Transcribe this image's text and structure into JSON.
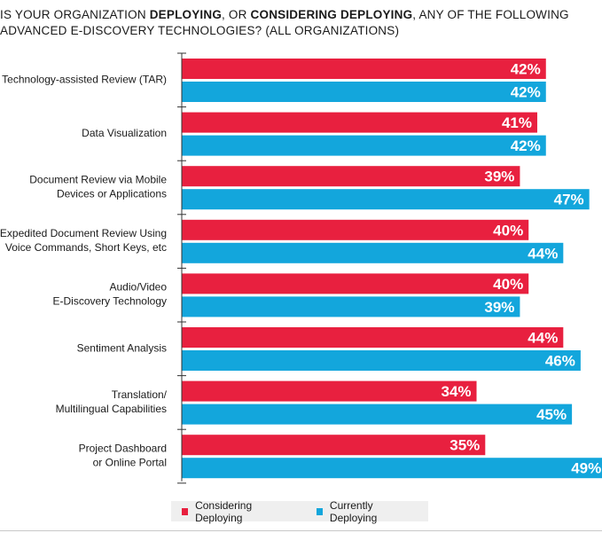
{
  "chart_data": {
    "type": "bar",
    "orientation": "horizontal",
    "title_parts": [
      {
        "text": "IS YOUR ORGANIZATION ",
        "bold": false
      },
      {
        "text": "DEPLOYING",
        "bold": true
      },
      {
        "text": ", OR ",
        "bold": false
      },
      {
        "text": "CONSIDERING DEPLOYING",
        "bold": true
      },
      {
        "text": ", ANY OF THE FOLLOWING ADVANCED E-DISCOVERY TECHNOLOGIES? (ALL ORGANIZATIONS)",
        "bold": false
      }
    ],
    "categories": [
      [
        "Technology-assisted Review (TAR)"
      ],
      [
        "Data Visualization"
      ],
      [
        "Document Review via Mobile",
        "Devices or Applications"
      ],
      [
        "Expedited Document Review Using",
        "Voice Commands, Short Keys, etc"
      ],
      [
        "Audio/Video",
        "E-Discovery Technology"
      ],
      [
        "Sentiment Analysis"
      ],
      [
        "Translation/",
        "Multilingual Capabilities"
      ],
      [
        "Project Dashboard",
        "or Online Portal"
      ]
    ],
    "series": [
      {
        "name": "Considering Deploying",
        "color": "#e8203f",
        "values": [
          42,
          41,
          39,
          40,
          40,
          44,
          34,
          35
        ]
      },
      {
        "name": "Currently Deploying",
        "color": "#13a6dc",
        "values": [
          42,
          42,
          47,
          44,
          39,
          46,
          45,
          49
        ]
      }
    ],
    "value_suffix": "%",
    "xlim": [
      0,
      50
    ],
    "grid": false,
    "legend_position": "bottom"
  },
  "legend": {
    "items": [
      {
        "label": "Considering Deploying",
        "color": "#e8203f"
      },
      {
        "label": "Currently Deploying",
        "color": "#13a6dc"
      }
    ]
  },
  "colors": {
    "axis": "#333333",
    "legend_bg": "#efefef"
  }
}
